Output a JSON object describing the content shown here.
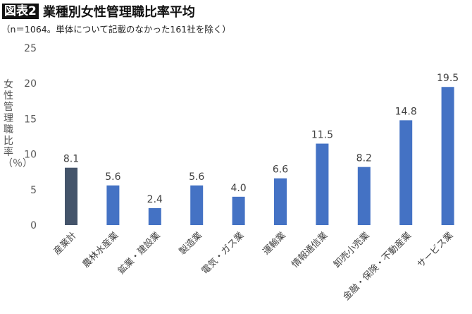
{
  "header": {
    "figure_label": "図表2",
    "title": "業種別女性管理職比率平均",
    "subtitle": "（n＝1064。単体について記載のなかった161社を除く）"
  },
  "chart_data": {
    "type": "bar",
    "title": "業種別女性管理職比率平均",
    "ylabel": "女性管理職比率（％）",
    "xlabel": "",
    "ylim": [
      0,
      25
    ],
    "yticks": [
      0,
      5,
      10,
      15,
      20,
      25
    ],
    "grid": false,
    "categories": [
      "産業計",
      "農林水産業",
      "鉱業・建設業",
      "製造業",
      "電気・ガス業",
      "運輸業",
      "情報通信業",
      "卸売小売業",
      "金融・保険・不動産業",
      "サービス業"
    ],
    "values": [
      8.1,
      5.6,
      2.4,
      5.6,
      4.0,
      6.6,
      11.5,
      8.2,
      14.8,
      19.5
    ],
    "data_labels": [
      "8.1",
      "5.6",
      "2.4",
      "5.6",
      "4.0",
      "6.6",
      "11.5",
      "8.2",
      "14.8",
      "19.5"
    ],
    "colors": {
      "total": "#44546a",
      "industry": "#4472c4"
    }
  }
}
